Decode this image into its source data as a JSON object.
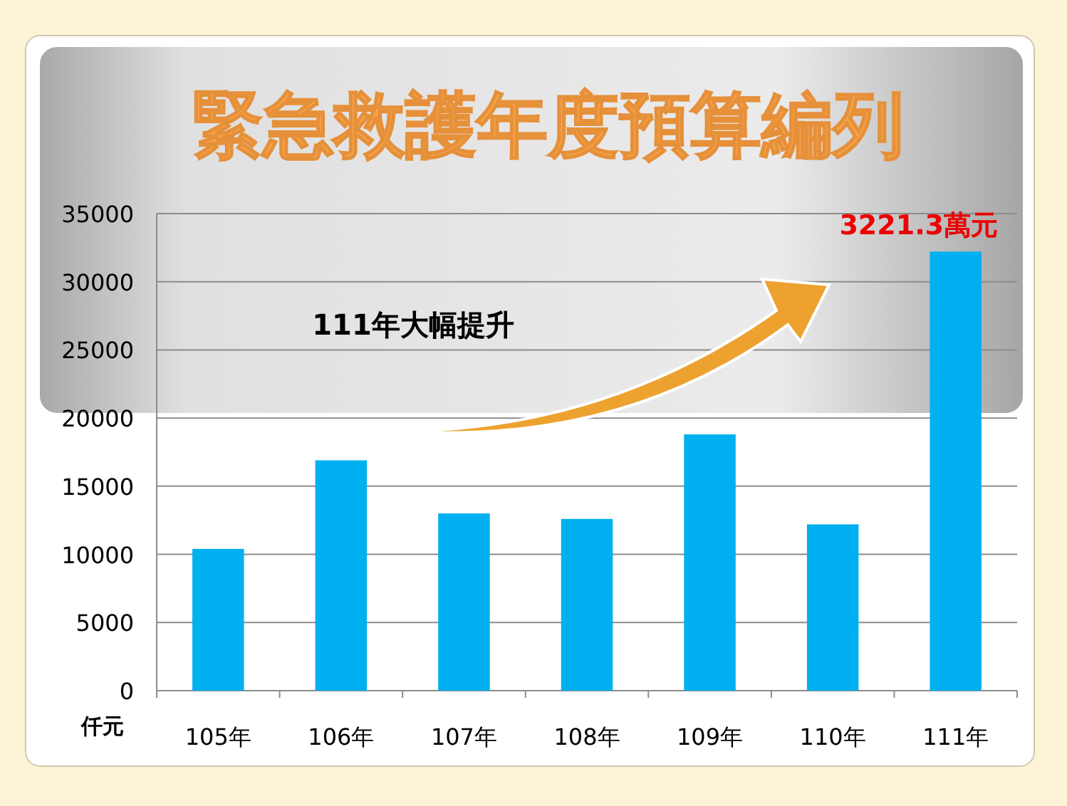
{
  "chart_data": {
    "type": "bar",
    "title": "緊急救護年度預算編列",
    "ylabel": "仟元",
    "categories": [
      "105年",
      "106年",
      "107年",
      "108年",
      "109年",
      "110年",
      "111年"
    ],
    "values": [
      10400,
      16900,
      13000,
      12600,
      18800,
      12200,
      32213
    ],
    "color": "#00b0f0",
    "ylim": [
      0,
      35000
    ],
    "yticks": [
      0,
      5000,
      10000,
      15000,
      20000,
      25000,
      30000,
      35000
    ],
    "grid": "y",
    "annotations": [
      {
        "text": "3221.3萬元",
        "x": "111年",
        "y": 32213
      },
      "111年大幅提升"
    ]
  }
}
